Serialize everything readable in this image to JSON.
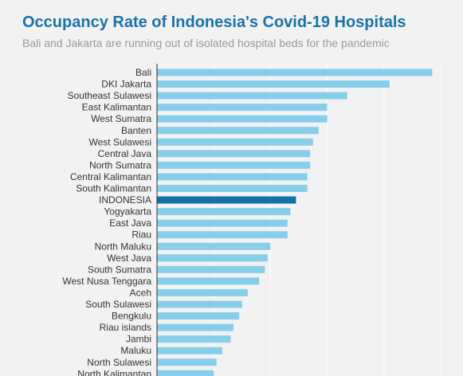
{
  "title": "Occupancy Rate of Indonesia's Covid-19 Hospitals",
  "subtitle": "Bali and Jakarta are running out of isolated hospital beds for the pandemic",
  "colors": {
    "bar": "#87ceeb",
    "highlight": "#1570a6",
    "title": "#1a73a8",
    "subtitle": "#9a9a9a",
    "background": "#f2f2f2",
    "grid": "#ffffff"
  },
  "chart_data": {
    "type": "bar",
    "orientation": "horizontal",
    "title": "Occupancy Rate of Indonesia's Covid-19 Hospitals",
    "subtitle": "Bali and Jakarta are running out of isolated hospital beds for the pandemic",
    "xlabel": "",
    "ylabel": "",
    "xlim": [
      0,
      100
    ],
    "grid": true,
    "highlight": "INDONESIA",
    "categories": [
      "Bali",
      "DKI Jakarta",
      "Southeast Sulawesi",
      "East Kalimantan",
      "West Sumatra",
      "Banten",
      "West Sulawesi",
      "Central Java",
      "North Sumatra",
      "Central Kalimantan",
      "South Kalimantan",
      "INDONESIA",
      "Yogyakarta",
      "East Java",
      "Riau",
      "North Maluku",
      "West Java",
      "South Sumatra",
      "West Nusa Tenggara",
      "Aceh",
      "South Sulawesi",
      "Bengkulu",
      "Riau islands",
      "Jambi",
      "Maluku",
      "North Sulawesi",
      "North Kalimantan"
    ],
    "values": [
      97,
      82,
      67,
      60,
      60,
      57,
      55,
      54,
      54,
      53,
      53,
      49,
      47,
      46,
      46,
      40,
      39,
      38,
      36,
      32,
      30,
      29,
      27,
      26,
      23,
      21,
      20
    ]
  }
}
